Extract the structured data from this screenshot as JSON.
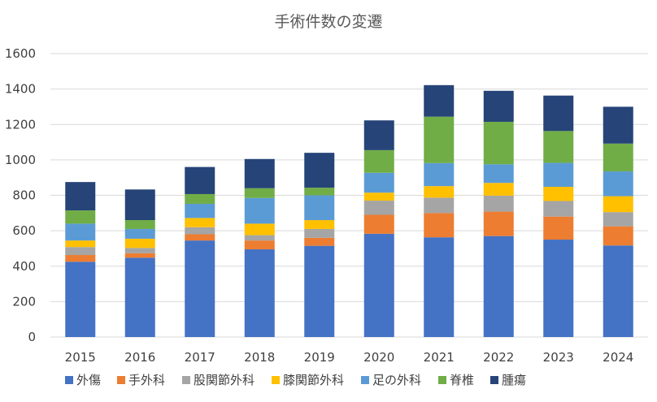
{
  "chart_data": {
    "type": "bar",
    "stacked": true,
    "title": "手術件数の変遷",
    "xlabel": "",
    "ylabel": "",
    "ylim": [
      0,
      1600
    ],
    "yticks": [
      "0",
      "200",
      "400",
      "600",
      "800",
      "1000",
      "1200",
      "1400",
      "1600"
    ],
    "grid": true,
    "legend_position": "bottom",
    "categories": [
      "2015",
      "2016",
      "2017",
      "2018",
      "2019",
      "2020",
      "2021",
      "2022",
      "2023",
      "2024"
    ],
    "series": [
      {
        "name": "外傷",
        "color": "#4472c4",
        "values": [
          425,
          448,
          545,
          495,
          515,
          583,
          563,
          570,
          550,
          517
        ]
      },
      {
        "name": "手外科",
        "color": "#ed7d31",
        "values": [
          38,
          25,
          35,
          50,
          45,
          107,
          137,
          138,
          130,
          108
        ]
      },
      {
        "name": "股関節外科",
        "color": "#a5a5a5",
        "values": [
          45,
          30,
          40,
          30,
          50,
          80,
          87,
          90,
          88,
          80
        ]
      },
      {
        "name": "膝関節外科",
        "color": "#ffc000",
        "values": [
          37,
          52,
          52,
          65,
          50,
          45,
          65,
          72,
          80,
          90
        ]
      },
      {
        "name": "足の外科",
        "color": "#5b9bd5",
        "values": [
          95,
          55,
          80,
          145,
          140,
          112,
          130,
          105,
          135,
          140
        ]
      },
      {
        "name": "脊椎",
        "color": "#70ad47",
        "values": [
          75,
          50,
          55,
          55,
          43,
          128,
          262,
          240,
          180,
          157
        ]
      },
      {
        "name": "腫瘍",
        "color": "#264478",
        "values": [
          160,
          173,
          153,
          165,
          197,
          168,
          178,
          175,
          200,
          208
        ]
      }
    ]
  }
}
